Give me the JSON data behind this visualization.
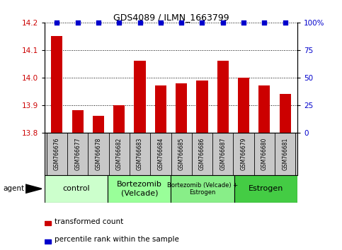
{
  "title": "GDS4089 / ILMN_1663799",
  "samples": [
    "GSM766676",
    "GSM766677",
    "GSM766678",
    "GSM766682",
    "GSM766683",
    "GSM766684",
    "GSM766685",
    "GSM766686",
    "GSM766687",
    "GSM766679",
    "GSM766680",
    "GSM766681"
  ],
  "bar_values": [
    14.15,
    13.88,
    13.86,
    13.9,
    14.06,
    13.97,
    13.98,
    13.99,
    14.06,
    14.0,
    13.97,
    13.94
  ],
  "percentile_values": [
    100,
    100,
    100,
    100,
    100,
    100,
    100,
    100,
    100,
    100,
    100,
    100
  ],
  "bar_color": "#cc0000",
  "percentile_color": "#0000cc",
  "ylim_left": [
    13.8,
    14.2
  ],
  "ylim_right": [
    0,
    100
  ],
  "yticks_left": [
    13.8,
    13.9,
    14.0,
    14.1,
    14.2
  ],
  "yticks_right": [
    0,
    25,
    50,
    75,
    100
  ],
  "ytick_labels_right": [
    "0",
    "25",
    "50",
    "75",
    "100%"
  ],
  "groups": [
    {
      "label": "control",
      "span": 3,
      "color": "#ccffcc",
      "fontsize": 8
    },
    {
      "label": "Bortezomib\n(Velcade)",
      "span": 3,
      "color": "#99ff99",
      "fontsize": 8
    },
    {
      "label": "Bortezomib (Velcade) +\nEstrogen",
      "span": 3,
      "color": "#88ee88",
      "fontsize": 6
    },
    {
      "label": "Estrogen",
      "span": 3,
      "color": "#44cc44",
      "fontsize": 8
    }
  ],
  "agent_label": "agent",
  "legend_bar_label": "transformed count",
  "legend_pct_label": "percentile rank within the sample",
  "bar_width": 0.55,
  "background_color": "#ffffff",
  "tick_label_color_left": "#cc0000",
  "tick_label_color_right": "#0000cc",
  "xtick_bg_color": "#c8c8c8",
  "title_fontsize": 9
}
